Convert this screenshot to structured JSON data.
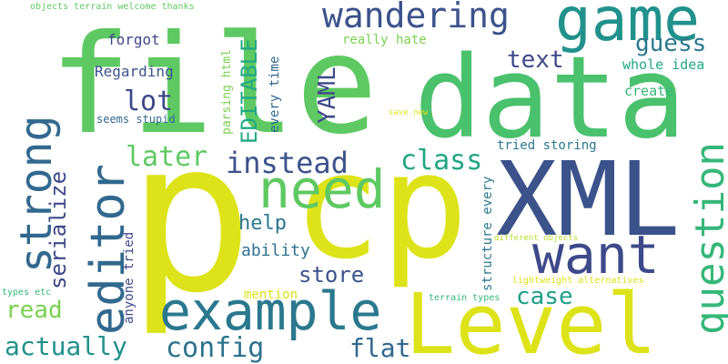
{
  "words": [
    {
      "text": "p",
      "color": "#dde318"
    },
    {
      "text": "cp",
      "color": "#dde318"
    },
    {
      "text": "file",
      "color": "#5ec962"
    },
    {
      "text": "data",
      "color": "#4ac16d"
    },
    {
      "text": "XML",
      "color": "#3b528b"
    },
    {
      "text": "Level",
      "color": "#dde318"
    },
    {
      "text": "game",
      "color": "#21918c"
    },
    {
      "text": "wandering",
      "color": "#3b528b"
    },
    {
      "text": "need",
      "color": "#5ec962"
    },
    {
      "text": "want",
      "color": "#3e4989"
    },
    {
      "text": "example",
      "color": "#2a788e"
    },
    {
      "text": "editor",
      "color": "#31688e"
    },
    {
      "text": "strong",
      "color": "#31688e"
    },
    {
      "text": "question",
      "color": "#35b779"
    },
    {
      "text": "instead",
      "color": "#3b528b"
    },
    {
      "text": "class",
      "color": "#21a585"
    },
    {
      "text": "later",
      "color": "#5ec962"
    },
    {
      "text": "config",
      "color": "#2c728e"
    },
    {
      "text": "actually",
      "color": "#21918c"
    },
    {
      "text": "flat",
      "color": "#31688e"
    },
    {
      "text": "lot",
      "color": "#3e4989"
    },
    {
      "text": "guess",
      "color": "#2a788e"
    },
    {
      "text": "text",
      "color": "#3e4989"
    },
    {
      "text": "case",
      "color": "#1fa088"
    },
    {
      "text": "YAML",
      "color": "#3e4989"
    },
    {
      "text": "EDITABLE",
      "color": "#22a884"
    },
    {
      "text": "store",
      "color": "#3b528b"
    },
    {
      "text": "read",
      "color": "#7ad151"
    },
    {
      "text": "serialize",
      "color": "#3e4989"
    },
    {
      "text": "help",
      "color": "#2a788e"
    },
    {
      "text": "ability",
      "color": "#2c728e"
    },
    {
      "text": "forgot",
      "color": "#3e4989"
    },
    {
      "text": "Regarding",
      "color": "#3b528b"
    },
    {
      "text": "whole idea",
      "color": "#22a884"
    },
    {
      "text": "create",
      "color": "#35b779"
    },
    {
      "text": "really hate",
      "color": "#7ad151"
    },
    {
      "text": "tried storing",
      "color": "#2a788e"
    },
    {
      "text": "every time",
      "color": "#31688e"
    },
    {
      "text": "parsing html",
      "color": "#7ad151"
    },
    {
      "text": "seems stupid",
      "color": "#31688e"
    },
    {
      "text": "structure every",
      "color": "#2a788e"
    },
    {
      "text": "anyone tried",
      "color": "#3e4989"
    },
    {
      "text": "mention",
      "color": "#dde318"
    },
    {
      "text": "objects terrain welcome thanks",
      "color": "#5ec962"
    },
    {
      "text": "save new",
      "color": "#dde318"
    },
    {
      "text": "different objects",
      "color": "#b5de2b"
    },
    {
      "text": "lightweight alternatives",
      "color": "#dde318"
    },
    {
      "text": "terrain types",
      "color": "#35b779"
    },
    {
      "text": "types etc",
      "color": "#35b779"
    }
  ]
}
